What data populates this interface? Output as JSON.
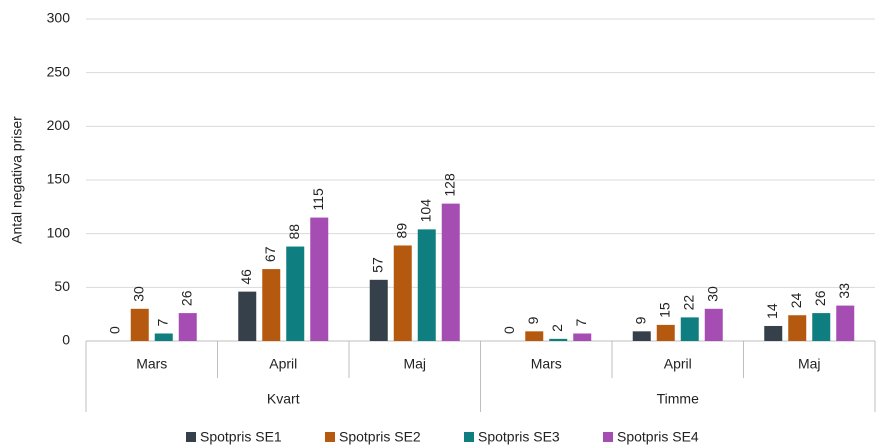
{
  "chart_data": {
    "type": "bar",
    "y_label": "Antal negativa priser",
    "groups": [
      {
        "label": "Kvart",
        "categories": [
          "Mars",
          "April",
          "Maj"
        ]
      },
      {
        "label": "Timme",
        "categories": [
          "Mars",
          "April",
          "Maj"
        ]
      }
    ],
    "series": [
      {
        "name": "Spotpris SE1",
        "color": "#36404a",
        "values": [
          0,
          46,
          57,
          0,
          9,
          14
        ]
      },
      {
        "name": "Spotpris SE2",
        "color": "#b5590f",
        "values": [
          30,
          67,
          89,
          9,
          15,
          24
        ]
      },
      {
        "name": "Spotpris SE3",
        "color": "#0f7e80",
        "values": [
          7,
          88,
          104,
          2,
          22,
          26
        ]
      },
      {
        "name": "Spotpris SE4",
        "color": "#a64db3",
        "values": [
          26,
          115,
          128,
          7,
          30,
          33
        ]
      }
    ],
    "ylim": [
      0,
      300
    ],
    "yticks": [
      0,
      50,
      100,
      150,
      200,
      250,
      300
    ],
    "grid": true,
    "legend": "bottom"
  }
}
